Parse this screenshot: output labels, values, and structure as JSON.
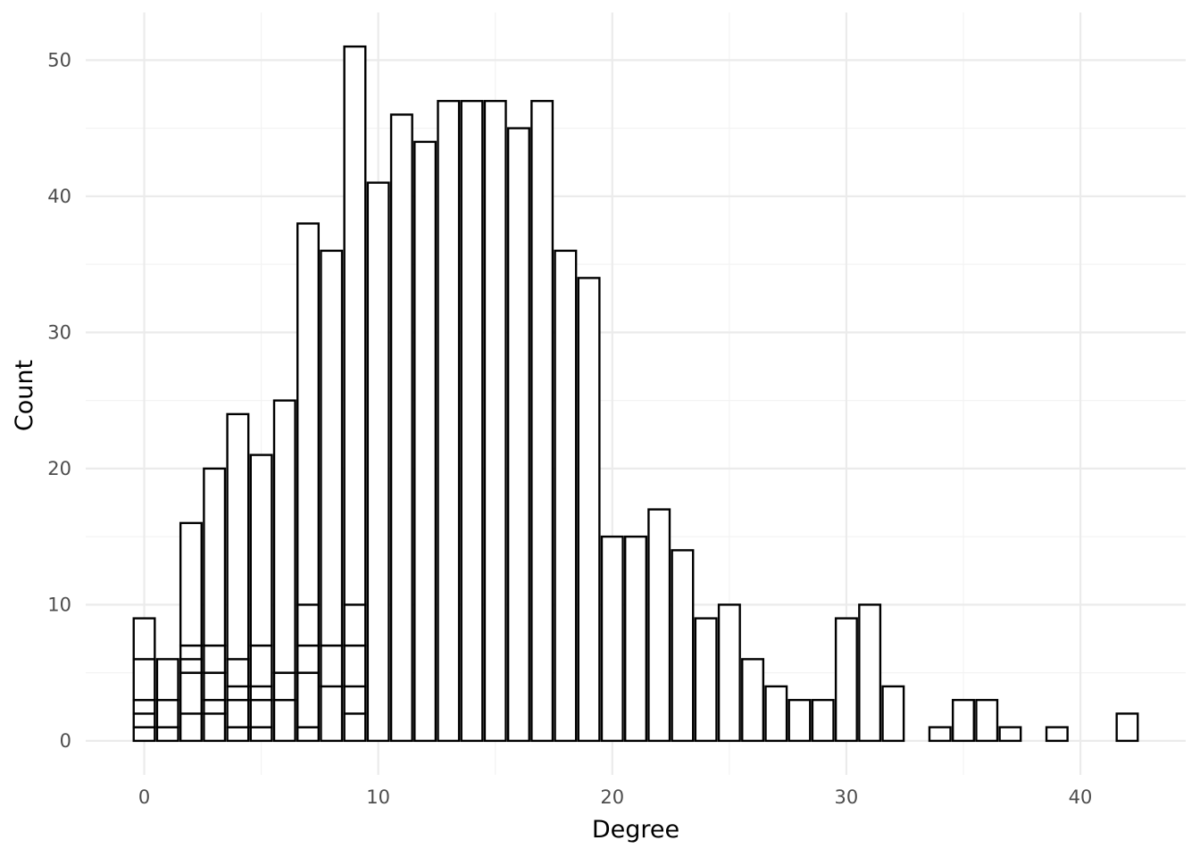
{
  "chart_data": {
    "type": "bar",
    "xlabel": "Degree",
    "ylabel": "Count",
    "xlim": [
      -2.5,
      44.5
    ],
    "ylim": [
      -2.5,
      53.5
    ],
    "x_ticks": [
      0,
      10,
      20,
      30,
      40
    ],
    "y_ticks": [
      0,
      10,
      20,
      30,
      40,
      50
    ],
    "grid": true,
    "bar_fill": "#ffffff",
    "bar_outline": "#000000",
    "bar_width": 0.9,
    "stacked": true,
    "bars": [
      {
        "x": 0,
        "segments": [
          1,
          1,
          1,
          3,
          3
        ]
      },
      {
        "x": 1,
        "segments": [
          1,
          2,
          3
        ]
      },
      {
        "x": 2,
        "segments": [
          2,
          3,
          1,
          1,
          9
        ]
      },
      {
        "x": 3,
        "segments": [
          2,
          1,
          2,
          2,
          13
        ]
      },
      {
        "x": 4,
        "segments": [
          1,
          2,
          1,
          2,
          18
        ]
      },
      {
        "x": 5,
        "segments": [
          1,
          2,
          1,
          3,
          14
        ]
      },
      {
        "x": 6,
        "segments": [
          3,
          2,
          20
        ]
      },
      {
        "x": 7,
        "segments": [
          1,
          4,
          2,
          3,
          28
        ]
      },
      {
        "x": 8,
        "segments": [
          4,
          3,
          29
        ]
      },
      {
        "x": 9,
        "segments": [
          2,
          2,
          3,
          3,
          41
        ]
      },
      {
        "x": 10,
        "segments": [
          41
        ]
      },
      {
        "x": 11,
        "segments": [
          46
        ]
      },
      {
        "x": 12,
        "segments": [
          44
        ]
      },
      {
        "x": 13,
        "segments": [
          47
        ]
      },
      {
        "x": 14,
        "segments": [
          47
        ]
      },
      {
        "x": 15,
        "segments": [
          47
        ]
      },
      {
        "x": 16,
        "segments": [
          45
        ]
      },
      {
        "x": 17,
        "segments": [
          47
        ]
      },
      {
        "x": 18,
        "segments": [
          36
        ]
      },
      {
        "x": 19,
        "segments": [
          34
        ]
      },
      {
        "x": 20,
        "segments": [
          15
        ]
      },
      {
        "x": 21,
        "segments": [
          15
        ]
      },
      {
        "x": 22,
        "segments": [
          17
        ]
      },
      {
        "x": 23,
        "segments": [
          14
        ]
      },
      {
        "x": 24,
        "segments": [
          9
        ]
      },
      {
        "x": 25,
        "segments": [
          10
        ]
      },
      {
        "x": 26,
        "segments": [
          6
        ]
      },
      {
        "x": 27,
        "segments": [
          4
        ]
      },
      {
        "x": 28,
        "segments": [
          3
        ]
      },
      {
        "x": 29,
        "segments": [
          3
        ]
      },
      {
        "x": 30,
        "segments": [
          9
        ]
      },
      {
        "x": 31,
        "segments": [
          10
        ]
      },
      {
        "x": 32,
        "segments": [
          4
        ]
      },
      {
        "x": 34,
        "segments": [
          1
        ]
      },
      {
        "x": 35,
        "segments": [
          3
        ]
      },
      {
        "x": 36,
        "segments": [
          3
        ]
      },
      {
        "x": 37,
        "segments": [
          1
        ]
      },
      {
        "x": 39,
        "segments": [
          1
        ]
      },
      {
        "x": 42,
        "segments": [
          2
        ]
      }
    ]
  }
}
